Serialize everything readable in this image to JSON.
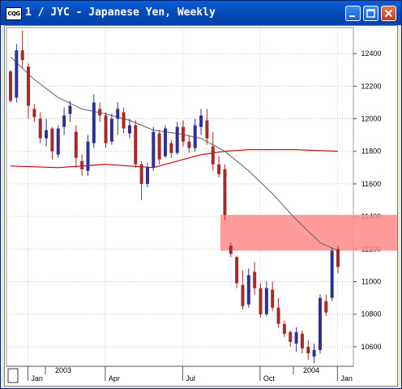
{
  "window": {
    "title": "1 / JYC - Japanese Yen, Weekly",
    "app_icon": "CQG",
    "icons": [
      "minimize-icon",
      "maximize-icon",
      "close-icon"
    ]
  },
  "chart_data": {
    "type": "candlestick",
    "title": "1 / JYC - Japanese Yen, Weekly",
    "y_ticks": [
      "12400",
      "12200",
      "12000",
      "11800",
      "11600",
      "11400",
      "11200",
      "11000",
      "10800",
      "10600"
    ],
    "x_year_labels": [
      "2003",
      "2004"
    ],
    "x_month_labels": [
      "Jan",
      "Apr",
      "Jul",
      "Oct",
      "Jan"
    ],
    "ylim": [
      10480,
      12560
    ],
    "resistance_zone": [
      11190,
      11410
    ],
    "colors": {
      "up": "#2e3192",
      "down": "#a52a2a",
      "ma_slow": "#cc0000",
      "ma_fast": "#606060",
      "zone": "#ff8a8a"
    },
    "candles": [
      [
        12290,
        12300,
        12100,
        12110
      ],
      [
        12130,
        12460,
        12100,
        12420
      ],
      [
        12420,
        12540,
        12310,
        12360
      ],
      [
        12320,
        12340,
        12000,
        12080
      ],
      [
        12060,
        12090,
        11980,
        12010
      ],
      [
        12000,
        12040,
        11850,
        11880
      ],
      [
        11880,
        12000,
        11830,
        11930
      ],
      [
        11940,
        11950,
        11750,
        11800
      ],
      [
        11780,
        11960,
        11760,
        11940
      ],
      [
        11950,
        12070,
        11900,
        12020
      ],
      [
        12030,
        12110,
        11980,
        12080
      ],
      [
        11920,
        11960,
        11700,
        11760
      ],
      [
        11740,
        11780,
        11650,
        11690
      ],
      [
        11680,
        11900,
        11650,
        11860
      ],
      [
        11850,
        12150,
        11820,
        12100
      ],
      [
        12060,
        12100,
        11980,
        12020
      ],
      [
        12020,
        12040,
        11820,
        11850
      ],
      [
        11860,
        12030,
        11840,
        12000
      ],
      [
        12000,
        12100,
        11900,
        12060
      ],
      [
        12040,
        12070,
        11910,
        11940
      ],
      [
        11910,
        12000,
        11880,
        11960
      ],
      [
        11960,
        11990,
        11700,
        11720
      ],
      [
        11720,
        11740,
        11500,
        11600
      ],
      [
        11600,
        11730,
        11580,
        11700
      ],
      [
        11700,
        11950,
        11680,
        11920
      ],
      [
        11910,
        11930,
        11720,
        11750
      ],
      [
        11770,
        11960,
        11760,
        11940
      ],
      [
        11850,
        11870,
        11760,
        11790
      ],
      [
        11790,
        11980,
        11780,
        11950
      ],
      [
        11950,
        11990,
        11830,
        11860
      ],
      [
        11860,
        11900,
        11790,
        11820
      ],
      [
        11820,
        12000,
        11800,
        11960
      ],
      [
        11950,
        12060,
        11900,
        12020
      ],
      [
        11990,
        12060,
        11840,
        11880
      ],
      [
        11830,
        11920,
        11680,
        11720
      ],
      [
        11720,
        11770,
        11640,
        11660
      ],
      [
        11690,
        11720,
        11380,
        11410
      ],
      [
        11220,
        11240,
        11150,
        11170
      ],
      [
        11150,
        11160,
        10960,
        10990
      ],
      [
        10980,
        11070,
        10830,
        10850
      ],
      [
        10860,
        11080,
        10840,
        11040
      ],
      [
        11060,
        11120,
        10920,
        10960
      ],
      [
        10960,
        10990,
        10780,
        10800
      ],
      [
        10800,
        11000,
        10790,
        10960
      ],
      [
        10950,
        11000,
        10820,
        10840
      ],
      [
        10840,
        10900,
        10720,
        10740
      ],
      [
        10740,
        10760,
        10660,
        10680
      ],
      [
        10690,
        10700,
        10600,
        10630
      ],
      [
        10620,
        10720,
        10570,
        10690
      ],
      [
        10680,
        10700,
        10560,
        10590
      ],
      [
        10600,
        10640,
        10520,
        10560
      ],
      [
        10540,
        10620,
        10500,
        10580
      ],
      [
        10580,
        10920,
        10560,
        10900
      ],
      [
        10880,
        10920,
        10790,
        10810
      ],
      [
        10900,
        11210,
        10880,
        11190
      ],
      [
        11200,
        11220,
        11050,
        11090
      ]
    ],
    "ma_slow": [
      [
        0,
        11710
      ],
      [
        8,
        11700
      ],
      [
        16,
        11720
      ],
      [
        24,
        11700
      ],
      [
        32,
        11780
      ],
      [
        36,
        11800
      ],
      [
        40,
        11810
      ],
      [
        48,
        11810
      ],
      [
        55,
        11800
      ]
    ],
    "ma_fast": [
      [
        0,
        12380
      ],
      [
        4,
        12240
      ],
      [
        8,
        12130
      ],
      [
        12,
        12060
      ],
      [
        16,
        12030
      ],
      [
        20,
        11990
      ],
      [
        24,
        11930
      ],
      [
        28,
        11910
      ],
      [
        32,
        11880
      ],
      [
        36,
        11800
      ],
      [
        40,
        11680
      ],
      [
        44,
        11540
      ],
      [
        48,
        11380
      ],
      [
        52,
        11240
      ],
      [
        55,
        11190
      ]
    ]
  }
}
